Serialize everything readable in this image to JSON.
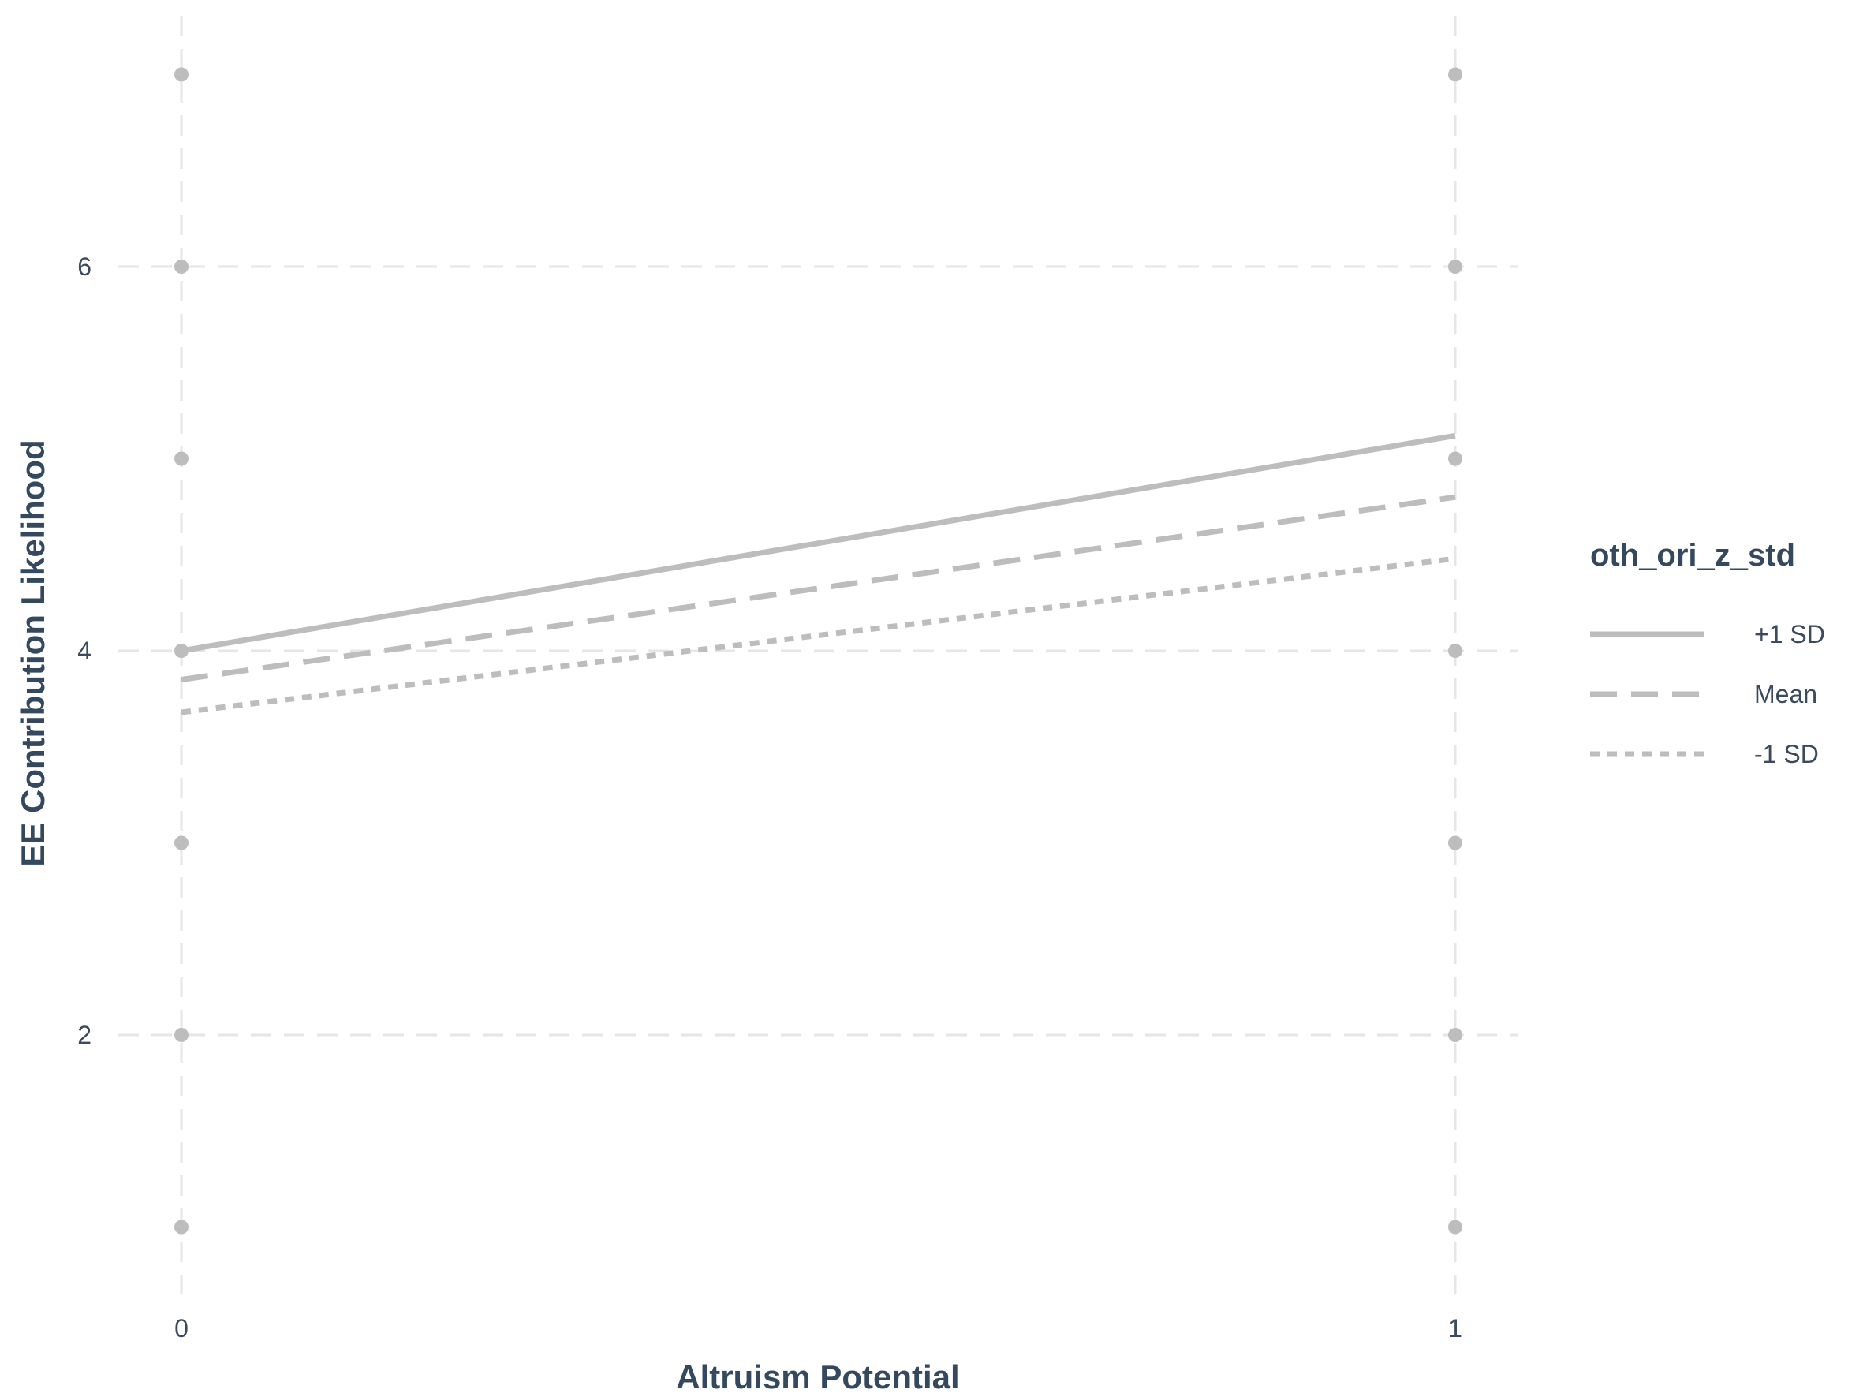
{
  "chart_data": {
    "type": "line",
    "title": "",
    "xlabel": "Altruism Potential",
    "ylabel": "EE Contribution Likelihood",
    "x": [
      0,
      1
    ],
    "x_ticks": [
      "0",
      "1"
    ],
    "y_ticks": [
      "2",
      "4",
      "6"
    ],
    "xlim": [
      -0.05,
      1.05
    ],
    "ylim": [
      0.7,
      7.3
    ],
    "grid": true,
    "grid_style": "dashed",
    "legend": {
      "title": "oth_ori_z_std",
      "placement": "right"
    },
    "series": [
      {
        "name": "+1 SD",
        "linestyle": "solid",
        "color": "#bdbdbd",
        "values": [
          4.0,
          5.12
        ]
      },
      {
        "name": "Mean",
        "linestyle": "dashed",
        "color": "#bdbdbd",
        "values": [
          3.85,
          4.8
        ]
      },
      {
        "name": "-1 SD",
        "linestyle": "dotted",
        "color": "#bdbdbd",
        "values": [
          3.68,
          4.48
        ]
      }
    ],
    "points": {
      "color": "#bdbdbd",
      "data": [
        {
          "x": 0,
          "y": 1
        },
        {
          "x": 0,
          "y": 2
        },
        {
          "x": 0,
          "y": 3
        },
        {
          "x": 0,
          "y": 4
        },
        {
          "x": 0,
          "y": 5
        },
        {
          "x": 0,
          "y": 6
        },
        {
          "x": 0,
          "y": 7
        },
        {
          "x": 1,
          "y": 1
        },
        {
          "x": 1,
          "y": 2
        },
        {
          "x": 1,
          "y": 3
        },
        {
          "x": 1,
          "y": 4
        },
        {
          "x": 1,
          "y": 5
        },
        {
          "x": 1,
          "y": 6
        },
        {
          "x": 1,
          "y": 7
        }
      ]
    }
  }
}
